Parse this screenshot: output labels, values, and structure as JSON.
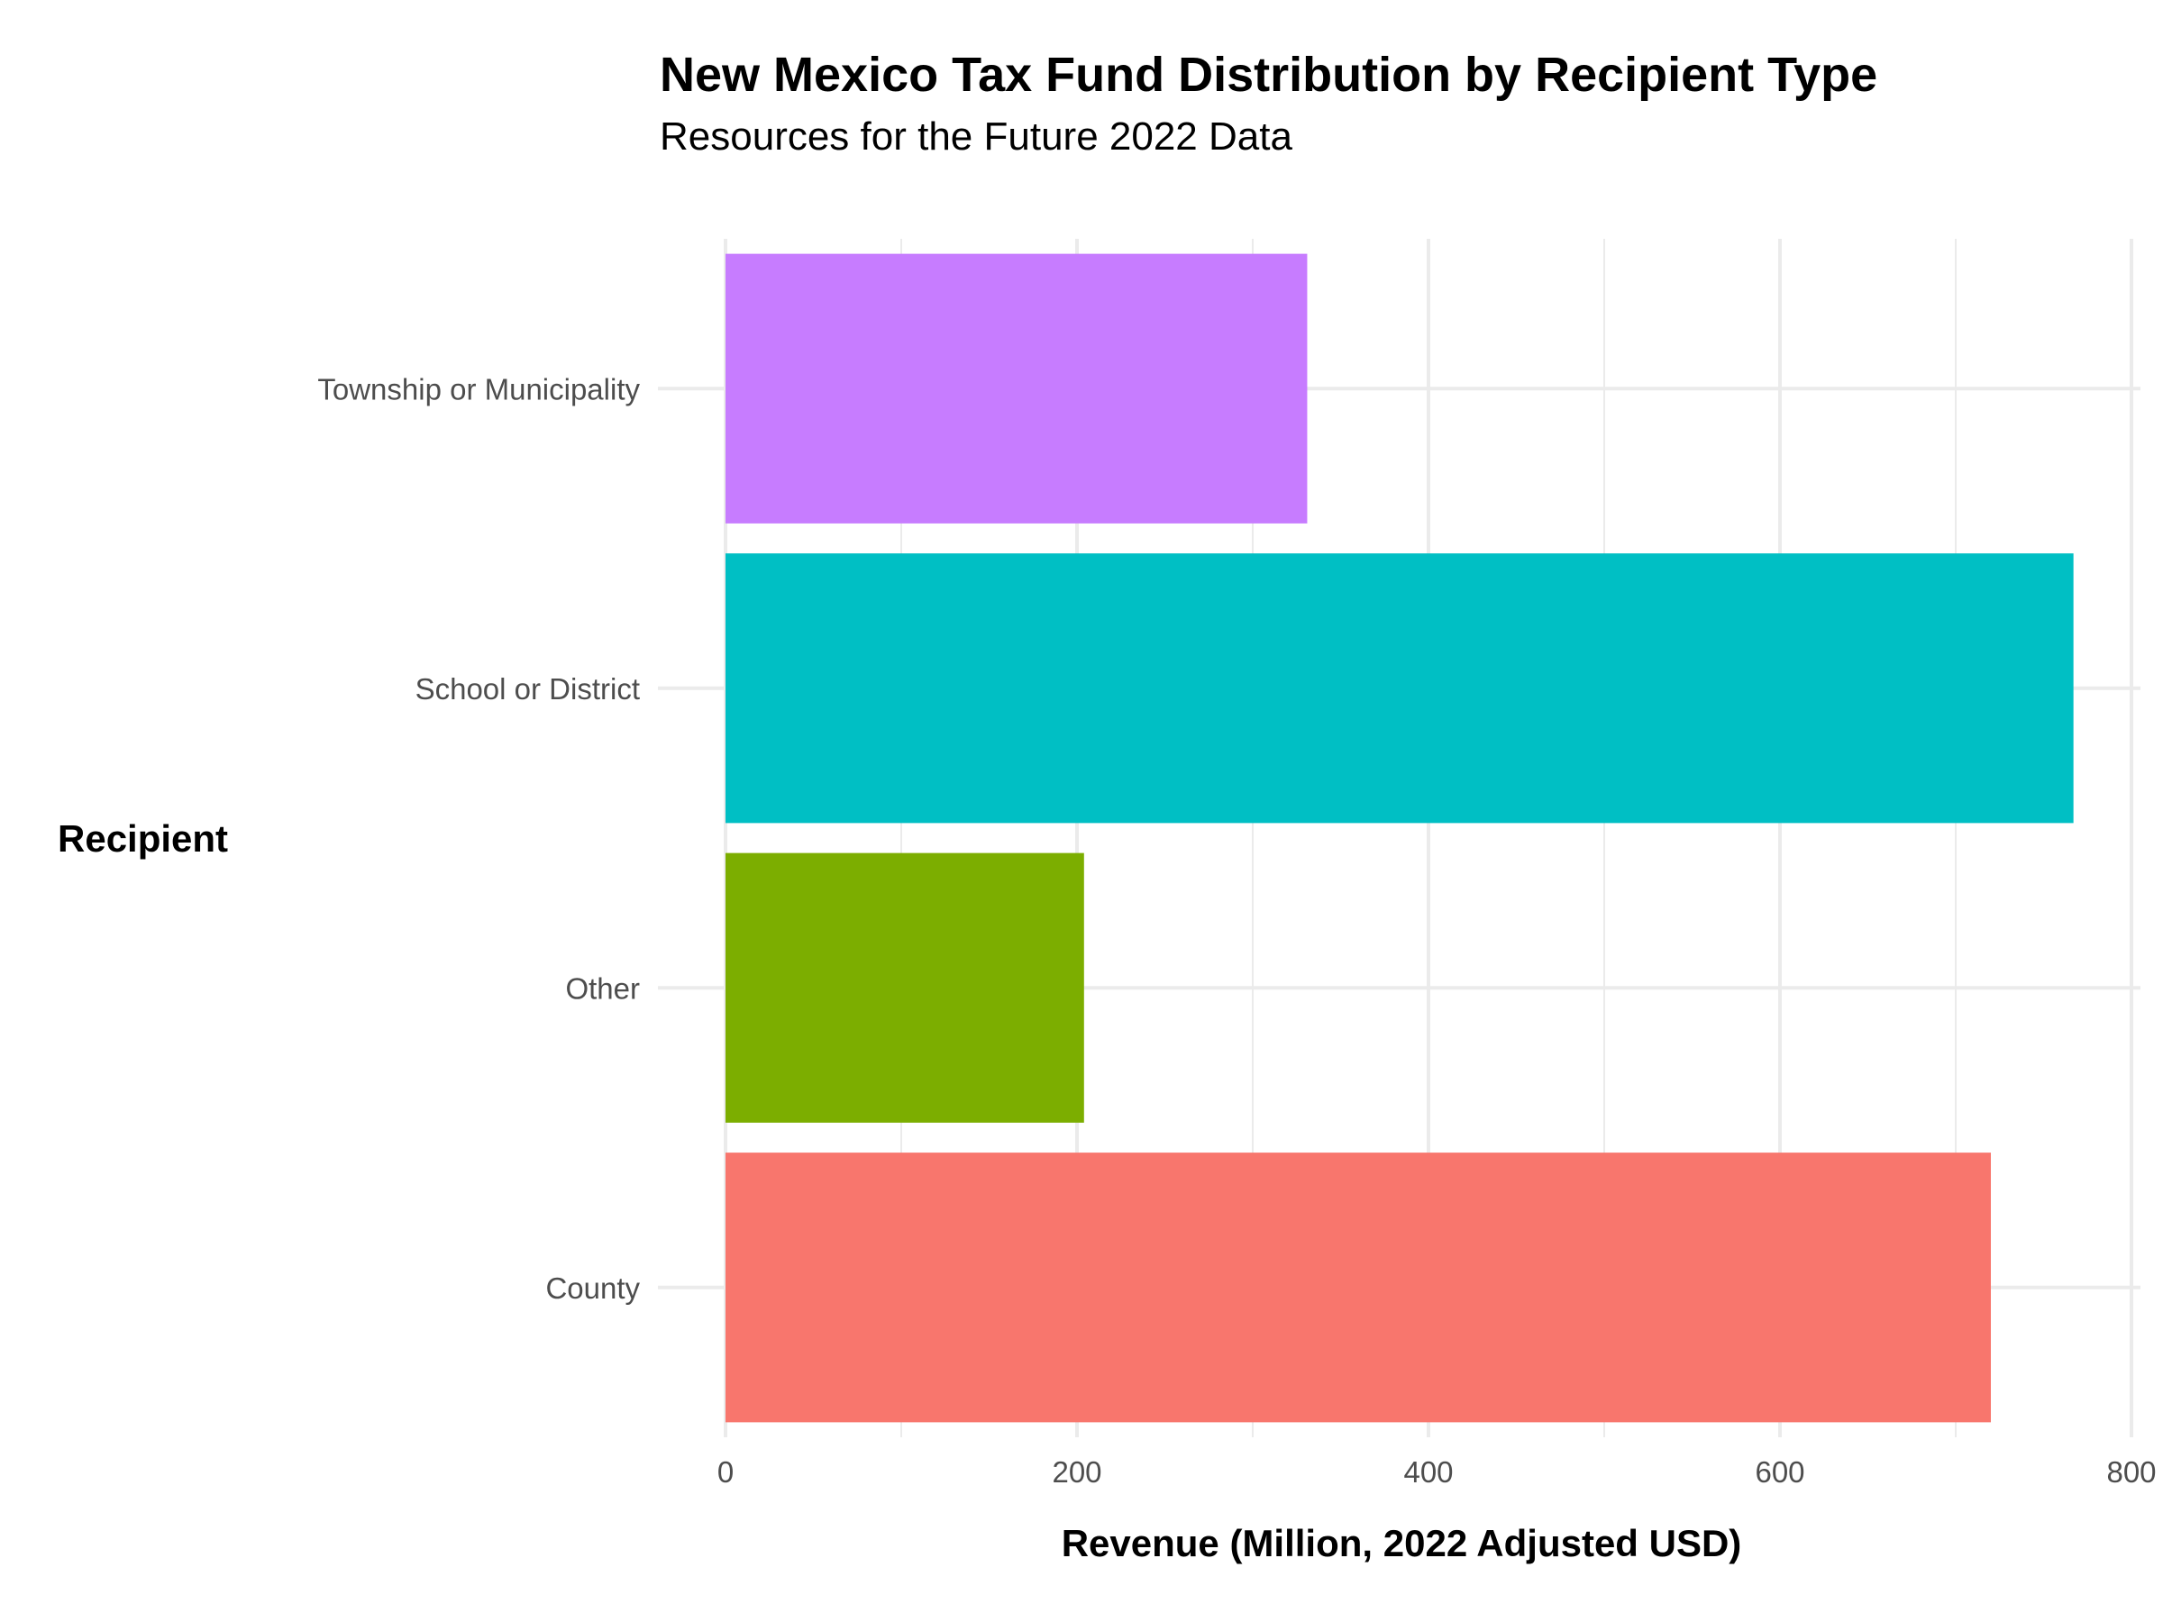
{
  "chart_data": {
    "type": "bar",
    "orientation": "horizontal",
    "title": "New Mexico Tax Fund Distribution by Recipient Type",
    "subtitle": "Resources for the Future 2022 Data",
    "xlabel": "Revenue (Million, 2022 Adjusted USD)",
    "ylabel": "Recipient",
    "categories": [
      "County",
      "Other",
      "School or District",
      "Township or Municipality"
    ],
    "values": [
      720,
      204,
      767,
      331
    ],
    "colors": [
      "#F8766D",
      "#7CAE00",
      "#00BFC4",
      "#C77CFF"
    ],
    "xlim": [
      0,
      800
    ],
    "xticks": [
      0,
      200,
      400,
      600,
      800
    ],
    "grid": true,
    "legend": "none"
  }
}
